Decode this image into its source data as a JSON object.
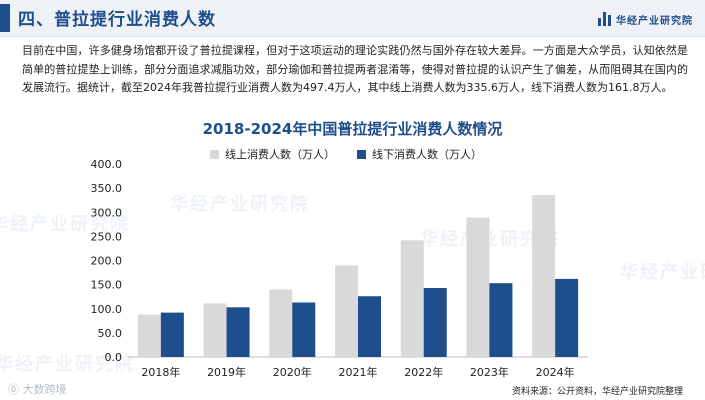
{
  "header": {
    "section_title": "四、普拉提行业消费人数",
    "logo_text": "华经产业研究院",
    "logo_icon": "bar-logo-icon"
  },
  "intro_text": "目前在中国，许多健身场馆都开设了普拉提课程，但对于这项运动的理论实践仍然与国外存在较大差异。一方面是大众学员，认知依然是简单的普拉提垫上训练，部分分面追求减脂功效，部分瑜伽和普拉提两者混淆等，使得对普拉提的认识产生了偏差，从而阻碍其在国内的发展流行。据统计，截至2024年我普拉提行业消费人数为497.4万人，其中线上消费人数为335.6万人，线下消费人数为161.8万人。",
  "watermark_text": "华经产业研究院",
  "bottom_watermark": "⓪ 大数跨境",
  "source_text": "资料来源：公开资料，华经产业研究院整理",
  "colors": {
    "online": "#d9d9d9",
    "offline": "#1f4e8c",
    "accent": "#1f4e8c"
  },
  "chart_data": {
    "type": "bar",
    "title": "2018-2024年中国普拉提行业消费人数情况",
    "categories": [
      "2018年",
      "2019年",
      "2020年",
      "2021年",
      "2022年",
      "2023年",
      "2024年"
    ],
    "series": [
      {
        "name": "线上消费人数（万人）",
        "values": [
          88,
          111,
          140,
          190,
          242,
          289,
          335.6
        ]
      },
      {
        "name": "线下消费人数（万人）",
        "values": [
          92,
          103,
          113,
          126,
          143,
          153,
          161.8
        ]
      }
    ],
    "ylim": [
      0,
      400
    ],
    "yticks": [
      "0.0",
      "50.0",
      "100.0",
      "150.0",
      "200.0",
      "250.0",
      "300.0",
      "350.0",
      "400.0"
    ],
    "legend_position": "top",
    "grid": false
  }
}
